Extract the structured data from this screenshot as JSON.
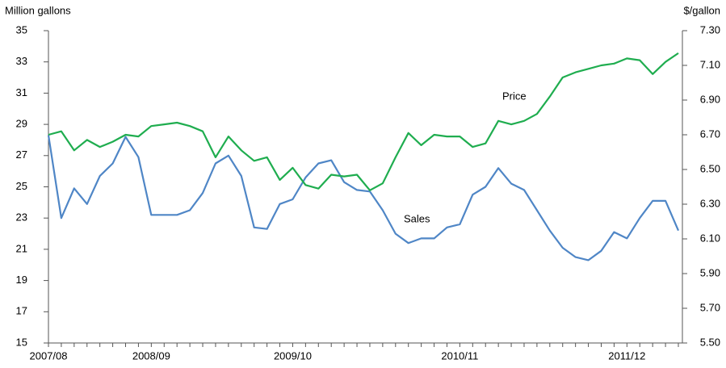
{
  "chart_data": {
    "type": "line",
    "y_title": "Million gallons",
    "y2_title": "$/gallon",
    "categories": [
      "2007/08",
      null,
      null,
      null,
      null,
      null,
      null,
      null,
      "2008/09",
      null,
      null,
      null,
      null,
      null,
      null,
      null,
      null,
      null,
      null,
      "2009/10",
      null,
      null,
      null,
      null,
      null,
      null,
      null,
      null,
      null,
      null,
      null,
      null,
      "2010/11",
      null,
      null,
      null,
      null,
      null,
      null,
      null,
      null,
      null,
      null,
      null,
      null,
      "2011/12",
      null,
      null,
      null,
      null
    ],
    "series": [
      {
        "name": "Sales",
        "color": "#4f86c6",
        "values": [
          28.3,
          23.0,
          24.9,
          23.9,
          25.7,
          26.5,
          28.2,
          26.9,
          23.2,
          23.2,
          23.2,
          23.5,
          24.6,
          26.5,
          27.0,
          25.7,
          22.4,
          22.3,
          23.9,
          24.2,
          25.6,
          26.5,
          26.7,
          25.3,
          24.8,
          24.7,
          23.5,
          22.0,
          21.4,
          21.7,
          21.7,
          22.4,
          22.6,
          24.5,
          25.0,
          26.2,
          25.2,
          24.8,
          23.5,
          22.2,
          21.1,
          20.5,
          20.3,
          20.9,
          22.1,
          21.7,
          23.0,
          24.1,
          24.1,
          22.2
        ]
      },
      {
        "name": "Price",
        "color": "#1fad4f",
        "axis": "y2",
        "values": [
          6.7,
          6.72,
          6.61,
          6.67,
          6.63,
          6.66,
          6.7,
          6.69,
          6.75,
          6.76,
          6.77,
          6.75,
          6.72,
          6.57,
          6.69,
          6.61,
          6.55,
          6.57,
          6.44,
          6.51,
          6.41,
          6.39,
          6.47,
          6.46,
          6.47,
          6.38,
          6.42,
          6.57,
          6.71,
          6.64,
          6.7,
          6.69,
          6.69,
          6.63,
          6.65,
          6.78,
          6.76,
          6.78,
          6.82,
          6.92,
          7.03,
          7.06,
          7.08,
          7.1,
          7.11,
          7.14,
          7.13,
          7.05,
          7.12,
          7.17
        ]
      }
    ],
    "ylim": [
      15,
      35
    ],
    "yticks": [
      15,
      17,
      19,
      21,
      23,
      25,
      27,
      29,
      31,
      33,
      35
    ],
    "y2lim": [
      5.5,
      7.3
    ],
    "y2ticks": [
      {
        "value": 5.5,
        "label": "5.50"
      },
      {
        "value": 5.7,
        "label": "5.70"
      },
      {
        "value": 5.9,
        "label": "5.90"
      },
      {
        "value": 6.1,
        "label": "6.10"
      },
      {
        "value": 6.3,
        "label": "6.30"
      },
      {
        "value": 6.5,
        "label": "6.50"
      },
      {
        "value": 6.7,
        "label": "6.70"
      },
      {
        "value": 6.9,
        "label": "6.90"
      },
      {
        "value": 7.1,
        "label": "7.10"
      },
      {
        "value": 7.3,
        "label": "7.30"
      }
    ],
    "grid": false
  }
}
